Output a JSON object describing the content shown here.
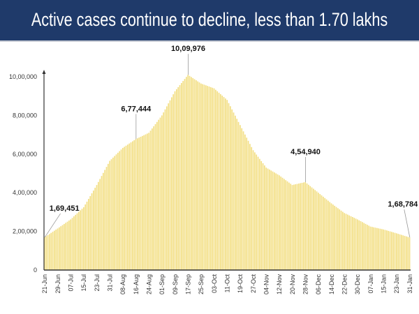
{
  "header": {
    "title": "Active cases continue to decline, less than 1.70 lakhs"
  },
  "chart_data": {
    "type": "bar",
    "title": "Active cases continue to decline, less than 1.70 lakhs",
    "xlabel": "",
    "ylabel": "",
    "ylim": [
      0,
      1000000
    ],
    "yticks": [
      "0",
      "2,00,000",
      "4,00,000",
      "6,00,000",
      "8,00,000",
      "10,00,000"
    ],
    "ytick_values": [
      0,
      200000,
      400000,
      600000,
      800000,
      1000000
    ],
    "categories": [
      "21-Jun",
      "29-Jun",
      "07-Jul",
      "15-Jul",
      "23-Jul",
      "31-Jul",
      "08-Aug",
      "16-Aug",
      "24-Aug",
      "01-Sep",
      "09-Sep",
      "17-Sep",
      "25-Sep",
      "03-Oct",
      "11-Oct",
      "19-Oct",
      "27-Oct",
      "04-Nov",
      "12-Nov",
      "20-Nov",
      "28-Nov",
      "06-Dec",
      "14-Dec",
      "22-Dec",
      "30-Dec",
      "07-Jan",
      "15-Jan",
      "23-Jan",
      "31-Jan"
    ],
    "values": [
      169451,
      215000,
      262000,
      325000,
      440000,
      565000,
      632000,
      677444,
      710000,
      800000,
      925000,
      1009976,
      965000,
      940000,
      880000,
      750000,
      620000,
      530000,
      490000,
      440000,
      454940,
      400000,
      345000,
      295000,
      262000,
      225000,
      210000,
      190000,
      168784
    ],
    "annotations": [
      {
        "category": "21-Jun",
        "label": "1,69,451"
      },
      {
        "category": "16-Aug",
        "label": "6,77,444"
      },
      {
        "category": "17-Sep",
        "label": "10,09,976"
      },
      {
        "category": "28-Nov",
        "label": "4,54,940"
      },
      {
        "category": "31-Jan",
        "label": "1,68,784"
      }
    ],
    "bar_color": "#f3df85",
    "grid": false,
    "legend": "none"
  }
}
